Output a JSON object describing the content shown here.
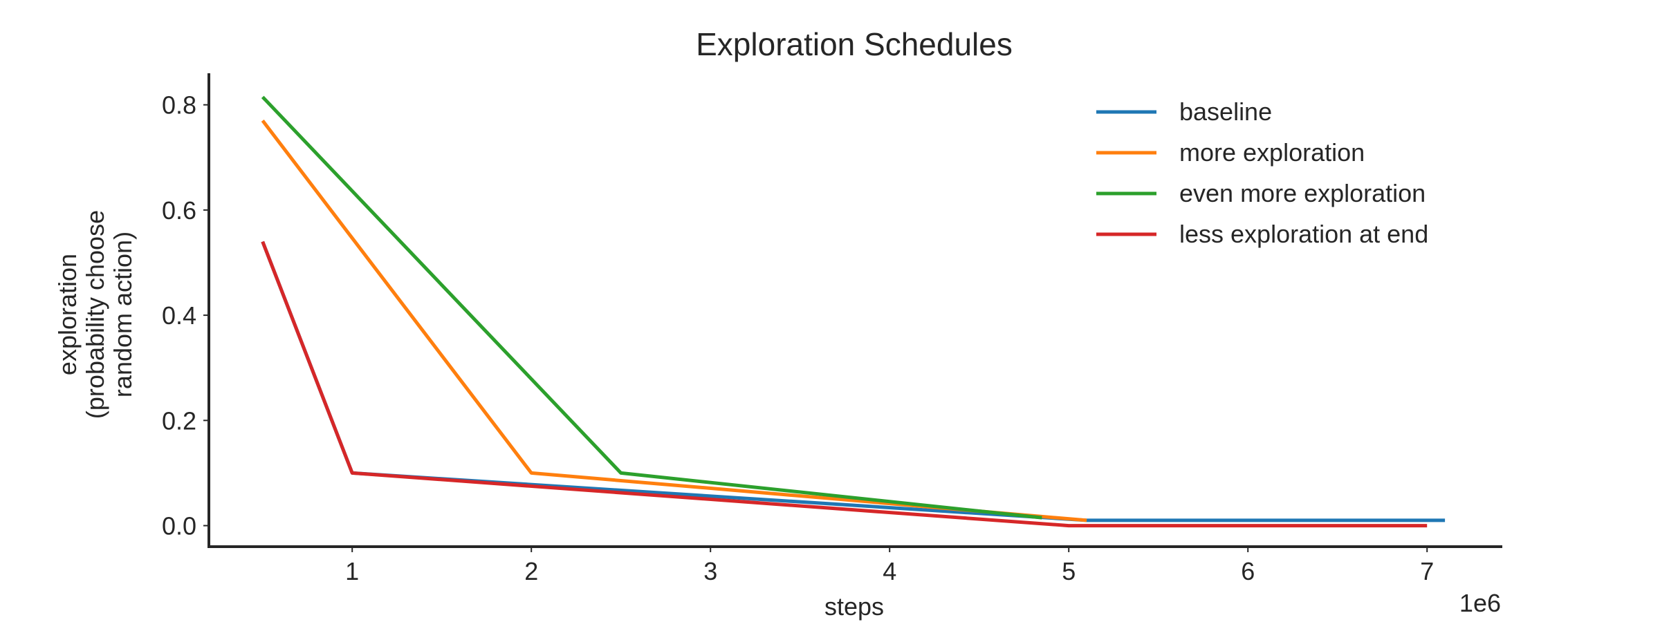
{
  "chart_data": {
    "type": "line",
    "title": "Exploration Schedules",
    "xlabel": "steps",
    "ylabel": [
      "exploration",
      "(probability choose",
      "random action)"
    ],
    "x_offset_text": "1e6",
    "x_scale": 1000000,
    "xlim": [
      200000,
      7420000
    ],
    "ylim": [
      -0.04,
      0.86
    ],
    "x_ticks": [
      1,
      2,
      3,
      4,
      5,
      6,
      7
    ],
    "y_ticks": [
      0.0,
      0.2,
      0.4,
      0.6,
      0.8
    ],
    "grid": false,
    "legend_position": "top-right",
    "series": [
      {
        "name": "baseline",
        "color": "#1f77b4",
        "x": [
          500000,
          1000000,
          5100000,
          7100000
        ],
        "y": [
          0.54,
          0.1,
          0.01,
          0.01
        ]
      },
      {
        "name": "more exploration",
        "color": "#ff7f0e",
        "x": [
          500000,
          2000000,
          5100000
        ],
        "y": [
          0.77,
          0.1,
          0.01
        ]
      },
      {
        "name": "even more exploration",
        "color": "#2ca02c",
        "x": [
          500000,
          2500000,
          4850000
        ],
        "y": [
          0.815,
          0.1,
          0.015
        ]
      },
      {
        "name": "less exploration at end",
        "color": "#d62728",
        "x": [
          500000,
          1000000,
          5000000,
          7000000
        ],
        "y": [
          0.54,
          0.1,
          0.0,
          0.0
        ]
      }
    ]
  }
}
